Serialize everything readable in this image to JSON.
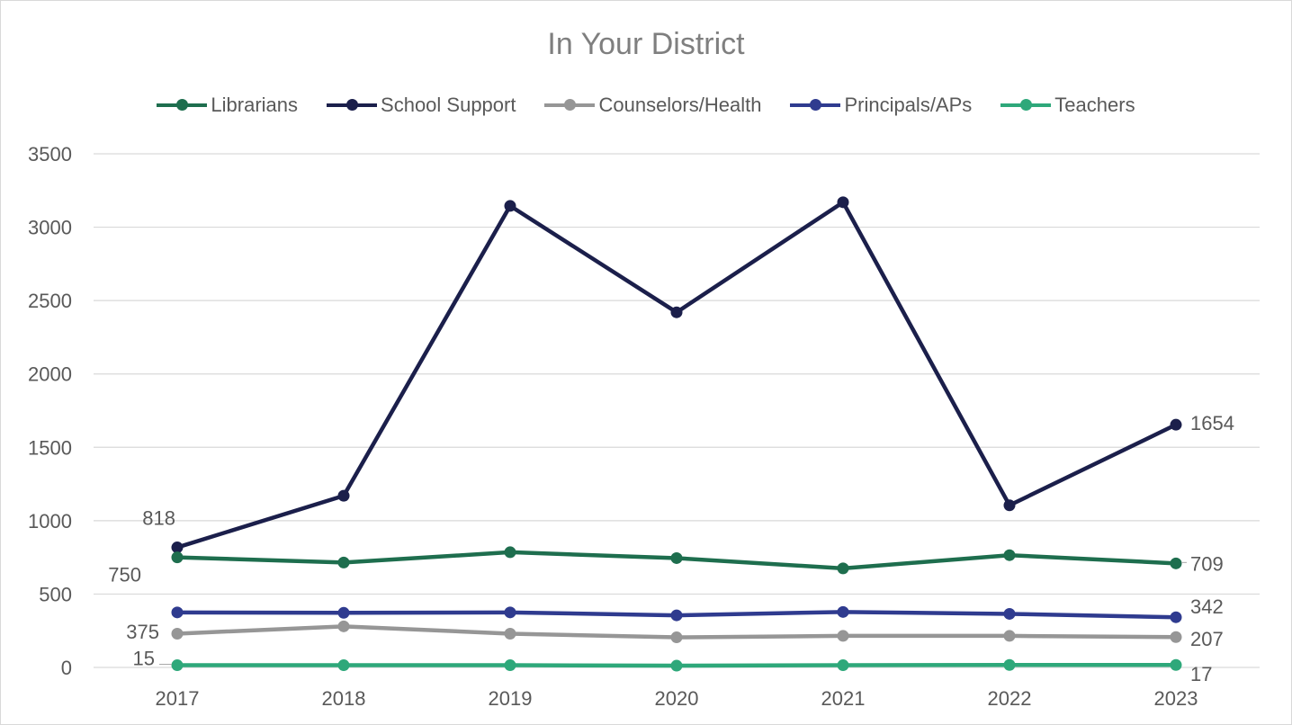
{
  "chart_data": {
    "type": "line",
    "title": "In Your District",
    "categories": [
      "2017",
      "2018",
      "2019",
      "2020",
      "2021",
      "2022",
      "2023"
    ],
    "ylim": [
      0,
      3500
    ],
    "yticks": [
      0,
      500,
      1000,
      1500,
      2000,
      2500,
      3000,
      3500
    ],
    "grid": true,
    "legend_position": "top",
    "series": [
      {
        "name": "Librarians",
        "color": "#1e6e4e",
        "values": [
          750,
          715,
          785,
          745,
          675,
          765,
          709
        ],
        "labels": {
          "0": "750",
          "6": "709"
        }
      },
      {
        "name": "School Support",
        "color": "#1b1f4b",
        "values": [
          818,
          1170,
          3145,
          2420,
          3170,
          1105,
          1654
        ],
        "labels": {
          "0": "818",
          "6": "1654"
        }
      },
      {
        "name": "Counselors/Health",
        "color": "#969696",
        "values": [
          230,
          280,
          230,
          205,
          215,
          215,
          207
        ],
        "labels": {
          "6": "207"
        }
      },
      {
        "name": "Principals/APs",
        "color": "#2f3b8f",
        "values": [
          375,
          372,
          375,
          355,
          378,
          365,
          342
        ],
        "labels": {
          "0": "375",
          "6": "342"
        }
      },
      {
        "name": "Teachers",
        "color": "#2ea87a",
        "values": [
          15,
          15,
          15,
          12,
          15,
          17,
          17
        ],
        "labels": {
          "0": "15",
          "6": "17"
        }
      }
    ]
  }
}
